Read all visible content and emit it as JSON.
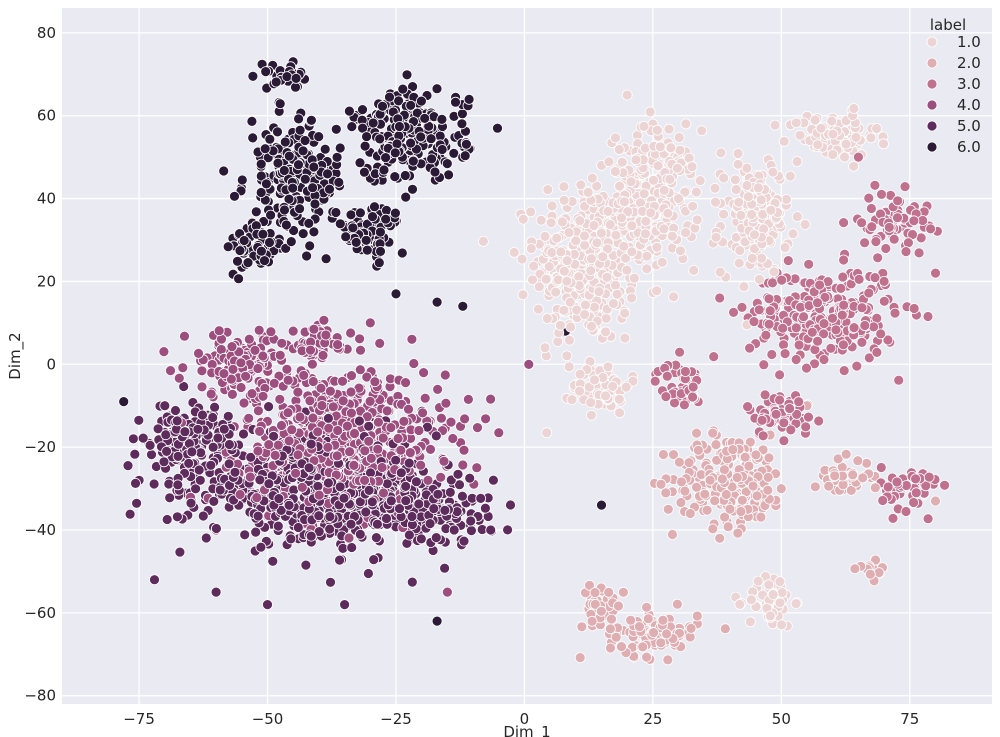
{
  "chart_data": {
    "type": "scatter",
    "title": "",
    "xlabel": "Dim_1",
    "ylabel": "Dim_2",
    "xlim": [
      -90,
      91
    ],
    "ylim": [
      -82,
      86
    ],
    "xticks": [
      -75,
      -50,
      -25,
      0,
      25,
      50,
      75
    ],
    "yticks": [
      -80,
      -60,
      -40,
      -20,
      0,
      20,
      40,
      60,
      80
    ],
    "xtick_labels": [
      "−75",
      "−50",
      "−25",
      "0",
      "25",
      "50",
      "75"
    ],
    "ytick_labels": [
      "−80",
      "−60",
      "−40",
      "−20",
      "0",
      "20",
      "40",
      "60",
      "80"
    ],
    "grid": true,
    "background": "#eaeaf2",
    "legend": {
      "title": "label",
      "placement": "top-right",
      "entries": [
        "1.0",
        "2.0",
        "3.0",
        "4.0",
        "5.0",
        "6.0"
      ]
    },
    "series": [
      {
        "name": "1.0",
        "color": "#ecd4d4",
        "clusters": [
          {
            "cx": 12,
            "cy": 25,
            "sx": 9,
            "sy": 18
          },
          {
            "cx": 25,
            "cy": 40,
            "sx": 8,
            "sy": 15
          },
          {
            "cx": 45,
            "cy": 35,
            "sx": 6,
            "sy": 12
          },
          {
            "cx": 60,
            "cy": 55,
            "sx": 8,
            "sy": 5
          },
          {
            "cx": 15,
            "cy": -5,
            "sx": 5,
            "sy": 6
          },
          {
            "cx": 48,
            "cy": -57,
            "sx": 4,
            "sy": 6
          }
        ],
        "points": [
          [
            -2,
            27
          ],
          [
            20,
            65
          ],
          [
            25,
            58
          ],
          [
            78,
            33
          ],
          [
            48,
            48
          ],
          [
            30,
            40
          ],
          [
            4,
            4
          ],
          [
            10,
            30
          ]
        ]
      },
      {
        "name": "2.0",
        "color": "#dfaeb2",
        "clusters": [
          {
            "cx": 40,
            "cy": -28,
            "sx": 10,
            "sy": 10
          },
          {
            "cx": 25,
            "cy": -65,
            "sx": 8,
            "sy": 5
          },
          {
            "cx": 15,
            "cy": -58,
            "sx": 4,
            "sy": 4
          },
          {
            "cx": 62,
            "cy": -27,
            "sx": 5,
            "sy": 4
          },
          {
            "cx": 68,
            "cy": -50,
            "sx": 3,
            "sy": 2
          }
        ],
        "points": [
          [
            38,
            -42
          ],
          [
            50,
            -30
          ],
          [
            28,
            -35
          ],
          [
            80,
            -33
          ],
          [
            55,
            -10
          ]
        ]
      },
      {
        "name": "3.0",
        "color": "#c0718e",
        "clusters": [
          {
            "cx": 58,
            "cy": 12,
            "sx": 13,
            "sy": 10
          },
          {
            "cx": 72,
            "cy": 35,
            "sx": 6,
            "sy": 6
          },
          {
            "cx": 30,
            "cy": -5,
            "sx": 4,
            "sy": 5
          },
          {
            "cx": 50,
            "cy": -12,
            "sx": 6,
            "sy": 5
          },
          {
            "cx": 75,
            "cy": -30,
            "sx": 5,
            "sy": 5
          }
        ],
        "points": [
          [
            70,
            20
          ],
          [
            80,
            22
          ],
          [
            65,
            50
          ],
          [
            38,
            16
          ],
          [
            45,
            5
          ]
        ]
      },
      {
        "name": "4.0",
        "color": "#9c4e7e",
        "clusters": [
          {
            "cx": -35,
            "cy": -18,
            "sx": 18,
            "sy": 15
          },
          {
            "cx": -55,
            "cy": 0,
            "sx": 10,
            "sy": 7
          },
          {
            "cx": -40,
            "cy": 5,
            "sx": 6,
            "sy": 4
          }
        ],
        "points": [
          [
            -30,
            10
          ],
          [
            -70,
            -10
          ],
          [
            -60,
            -40
          ],
          [
            -15,
            -55
          ],
          [
            -45,
            8
          ]
        ]
      },
      {
        "name": "5.0",
        "color": "#5e2c5c",
        "clusters": [
          {
            "cx": -40,
            "cy": -30,
            "sx": 20,
            "sy": 12
          },
          {
            "cx": -65,
            "cy": -20,
            "sx": 8,
            "sy": 10
          },
          {
            "cx": -20,
            "cy": -35,
            "sx": 12,
            "sy": 8
          }
        ],
        "points": [
          [
            -75,
            -28
          ],
          [
            -72,
            -52
          ],
          [
            -60,
            -55
          ],
          [
            -50,
            -58
          ],
          [
            -35,
            -58
          ]
        ]
      },
      {
        "name": "6.0",
        "color": "#2a1a35",
        "clusters": [
          {
            "cx": -22,
            "cy": 55,
            "sx": 10,
            "sy": 10
          },
          {
            "cx": -45,
            "cy": 45,
            "sx": 8,
            "sy": 12
          },
          {
            "cx": -52,
            "cy": 28,
            "sx": 5,
            "sy": 6
          },
          {
            "cx": -30,
            "cy": 32,
            "sx": 6,
            "sy": 6
          },
          {
            "cx": -47,
            "cy": 70,
            "sx": 4,
            "sy": 3
          }
        ],
        "points": [
          [
            -17,
            15
          ],
          [
            -25,
            17
          ],
          [
            -12,
            14
          ],
          [
            -78,
            -9
          ],
          [
            -17,
            -62
          ],
          [
            15,
            -34
          ],
          [
            8,
            8
          ]
        ]
      }
    ]
  }
}
